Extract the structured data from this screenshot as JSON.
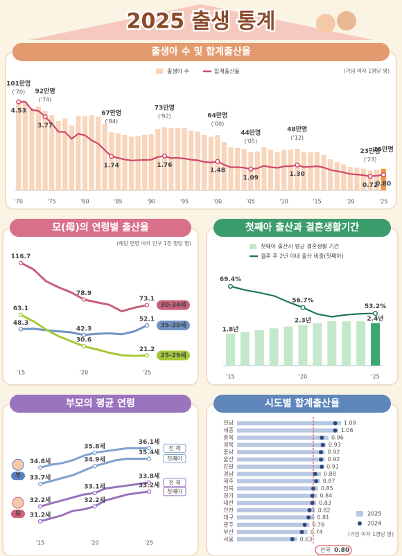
{
  "title": "2025 출생 통계",
  "chart_data": [
    {
      "type": "bar_line",
      "title": "출생아 수 및 합계출산율",
      "note": "(가임 여자 1명당 명)",
      "categories": [
        "'70",
        null,
        null,
        null,
        null,
        "'75",
        null,
        null,
        null,
        null,
        "'80",
        null,
        null,
        null,
        null,
        "'85",
        null,
        null,
        null,
        null,
        "'90",
        null,
        null,
        null,
        null,
        "'95",
        null,
        null,
        null,
        null,
        "'00",
        null,
        null,
        null,
        null,
        "'05",
        null,
        null,
        null,
        null,
        "'10",
        null,
        null,
        null,
        null,
        "'15",
        null,
        null,
        null,
        null,
        "'20",
        null,
        null,
        null,
        null,
        "'25"
      ],
      "series": [
        {
          "name": "출생아 수",
          "color": "#f8d5bb",
          "values": [
            101,
            102,
            95,
            97,
            92,
            87,
            80,
            83,
            75,
            86,
            86,
            87,
            85,
            77,
            67,
            66,
            64,
            62,
            63,
            64,
            65,
            71,
            73,
            72,
            72,
            72,
            69,
            68,
            64,
            62,
            64,
            56,
            50,
            49,
            48,
            44,
            45,
            50,
            47,
            44,
            47,
            47,
            48,
            44,
            44,
            44,
            41,
            36,
            33,
            30,
            27,
            26,
            25,
            23,
            24,
            25
          ],
          "value_labels": [
            "101만명",
            null,
            null,
            null,
            "92만명",
            null,
            null,
            null,
            null,
            null,
            null,
            null,
            null,
            null,
            "67만명",
            null,
            null,
            null,
            null,
            null,
            null,
            null,
            "73만명",
            null,
            null,
            null,
            null,
            null,
            null,
            null,
            "64만명",
            null,
            null,
            null,
            null,
            "44만명",
            null,
            null,
            null,
            null,
            null,
            null,
            "48만명",
            null,
            null,
            null,
            null,
            null,
            null,
            null,
            null,
            null,
            null,
            "23만명",
            null,
            "25만명"
          ],
          "label_years": [
            "('70)",
            null,
            null,
            null,
            "('74)",
            null,
            null,
            null,
            null,
            null,
            null,
            null,
            null,
            null,
            "('84)",
            null,
            null,
            null,
            null,
            null,
            null,
            null,
            "('92)",
            null,
            null,
            null,
            null,
            null,
            null,
            null,
            "('00)",
            null,
            null,
            null,
            null,
            "('05)",
            null,
            null,
            null,
            null,
            null,
            null,
            "('12)",
            null,
            null,
            null,
            null,
            null,
            null,
            null,
            null,
            null,
            null,
            "('23)",
            null,
            null
          ]
        },
        {
          "name": "합계출산율",
          "color": "#d0476a",
          "axis": "y2",
          "values": [
            4.53,
            4.54,
            4.12,
            4.07,
            3.77,
            3.43,
            3.0,
            2.99,
            2.64,
            2.9,
            2.82,
            2.57,
            2.39,
            2.06,
            1.74,
            1.66,
            1.58,
            1.53,
            1.55,
            1.56,
            1.57,
            1.71,
            1.76,
            1.65,
            1.66,
            1.63,
            1.57,
            1.54,
            1.46,
            1.43,
            1.48,
            1.31,
            1.18,
            1.19,
            1.16,
            1.09,
            1.13,
            1.26,
            1.19,
            1.15,
            1.23,
            1.24,
            1.3,
            1.19,
            1.21,
            1.24,
            1.17,
            1.05,
            0.98,
            0.92,
            0.84,
            0.81,
            0.78,
            0.72,
            0.75,
            0.8
          ],
          "value_labels": [
            "4.53",
            null,
            null,
            null,
            "3.77",
            null,
            null,
            null,
            null,
            null,
            null,
            null,
            null,
            null,
            "1.74",
            null,
            null,
            null,
            null,
            null,
            null,
            null,
            "1.76",
            null,
            null,
            null,
            null,
            null,
            null,
            null,
            "1.48",
            null,
            null,
            null,
            null,
            "1.09",
            null,
            null,
            null,
            null,
            null,
            null,
            "1.30",
            null,
            null,
            null,
            null,
            null,
            null,
            null,
            null,
            null,
            null,
            "0.72",
            null,
            "0.80"
          ]
        }
      ],
      "ylim": [
        0,
        140
      ],
      "y2lim": [
        0,
        6.2
      ],
      "highlight_color": "#f0963c"
    },
    {
      "type": "line",
      "title": "모(母)의 연령별 출산율",
      "note": "(해당 연령 여자 인구 1천 명당 명)",
      "categories": [
        "'15",
        null,
        null,
        null,
        null,
        "'20",
        null,
        null,
        null,
        null,
        "'25"
      ],
      "series": [
        {
          "name": "30-34세",
          "color": "#c8607a",
          "values": [
            116.7,
            110.1,
            97.7,
            91.4,
            86.2,
            78.9,
            76.1,
            73.5,
            66.7,
            70.4,
            73.1
          ]
        },
        {
          "name": "35-39세",
          "color": "#6e93c4",
          "values": [
            48.3,
            48.7,
            47.2,
            46.1,
            45.0,
            42.3,
            43.5,
            44.0,
            43.0,
            46.0,
            52.1
          ]
        },
        {
          "name": "25-29세",
          "color": "#a6c93a",
          "values": [
            63.1,
            56.4,
            47.9,
            41.0,
            35.7,
            30.6,
            27.5,
            24.0,
            21.4,
            20.7,
            21.2
          ]
        }
      ],
      "ylim": [
        15,
        125
      ]
    },
    {
      "type": "bar_line",
      "title": "첫째아 출산과 결혼생활기간",
      "categories": [
        "'15",
        null,
        null,
        null,
        null,
        "'20",
        null,
        null,
        null,
        null,
        "'25"
      ],
      "series": [
        {
          "name": "첫째아 출산시 평균 결혼생활 기간",
          "color": "#c3e8cb",
          "values": [
            1.8,
            1.9,
            2.0,
            2.1,
            2.2,
            2.3,
            2.4,
            2.5,
            2.5,
            2.5,
            2.4
          ],
          "value_labels": [
            "1.8년",
            null,
            null,
            null,
            null,
            "2.3년",
            null,
            null,
            null,
            null,
            "2.4년"
          ]
        },
        {
          "name": "결혼 후 2년 이내 출산 비중(첫째아)",
          "color": "#1f7a52",
          "axis": "y2",
          "values": [
            69.4,
            67.2,
            65.6,
            63.7,
            60.0,
            56.7,
            52.8,
            51.2,
            52.4,
            53.0,
            53.2
          ],
          "value_labels": [
            "69.4%",
            null,
            null,
            null,
            null,
            "56.7%",
            null,
            null,
            null,
            null,
            "53.2%"
          ]
        }
      ],
      "ylim": [
        0,
        5
      ],
      "y2lim": [
        22,
        75
      ],
      "highlight_color": "#3aa870"
    },
    {
      "type": "line",
      "title": "부모의 평균 연령",
      "categories": [
        "'15",
        null,
        null,
        null,
        null,
        "'20",
        null,
        null,
        null,
        null,
        "'25"
      ],
      "series": [
        {
          "group": "부",
          "name": "전 체",
          "color": "#7fa2cf",
          "values": [
            34.8,
            35.0,
            35.1,
            35.3,
            35.6,
            35.8,
            35.9,
            36.0,
            36.1,
            36.1,
            36.1
          ],
          "value_labels": [
            "34.8세",
            null,
            null,
            null,
            null,
            "35.8세",
            null,
            null,
            null,
            null,
            "36.1세"
          ]
        },
        {
          "group": "부",
          "name": "첫째아",
          "color": "#7fa2cf",
          "values": [
            33.7,
            33.9,
            34.1,
            34.3,
            34.6,
            34.9,
            35.1,
            35.3,
            35.4,
            35.4,
            35.4
          ],
          "value_labels": [
            "33.7세",
            null,
            null,
            null,
            null,
            "34.9세",
            null,
            null,
            null,
            null,
            "35.4세"
          ]
        },
        {
          "group": "모",
          "name": "전 체",
          "color": "#9a72c0",
          "values": [
            32.2,
            32.4,
            32.6,
            32.8,
            33.0,
            33.1,
            33.4,
            33.5,
            33.6,
            33.7,
            33.8
          ],
          "value_labels": [
            "32.2세",
            null,
            null,
            null,
            null,
            "33.1세",
            null,
            null,
            null,
            null,
            "33.8세"
          ]
        },
        {
          "group": "모",
          "name": "첫째아",
          "color": "#9a72c0",
          "values": [
            31.2,
            31.4,
            31.6,
            31.9,
            32.0,
            32.2,
            32.6,
            32.8,
            33.0,
            33.1,
            33.2
          ],
          "value_labels": [
            "31.2세",
            null,
            null,
            null,
            null,
            "32.2세",
            null,
            null,
            null,
            null,
            "33.2세"
          ]
        }
      ],
      "ylim": [
        30.5,
        37
      ]
    },
    {
      "type": "hbar",
      "title": "시도별 합계출산율",
      "note": "(가임 여자 1명당 명)",
      "categories": [
        "전남",
        "세종",
        "충북",
        "경북",
        "충남",
        "울산",
        "강원",
        "경남",
        "제주",
        "전북",
        "경기",
        "대전",
        "인천",
        "대구",
        "광주",
        "부산",
        "서울"
      ],
      "series": [
        {
          "name": "2025",
          "color": "#b9c8e2",
          "values": [
            1.09,
            1.06,
            0.96,
            0.93,
            0.92,
            0.92,
            0.91,
            0.88,
            0.87,
            0.85,
            0.84,
            0.83,
            0.82,
            0.81,
            0.76,
            0.74,
            0.63
          ]
        },
        {
          "name": "2024",
          "color": "#2e4a7d",
          "values": [
            1.03,
            1.03,
            0.89,
            0.9,
            0.88,
            0.88,
            0.89,
            0.82,
            0.83,
            0.8,
            0.79,
            0.79,
            0.76,
            0.75,
            0.71,
            0.68,
            0.58
          ]
        }
      ],
      "xlim": [
        0,
        1.2
      ],
      "reference": {
        "label": "전국",
        "value": 0.8,
        "value_label": "0.80",
        "color": "#d9363e"
      }
    }
  ]
}
